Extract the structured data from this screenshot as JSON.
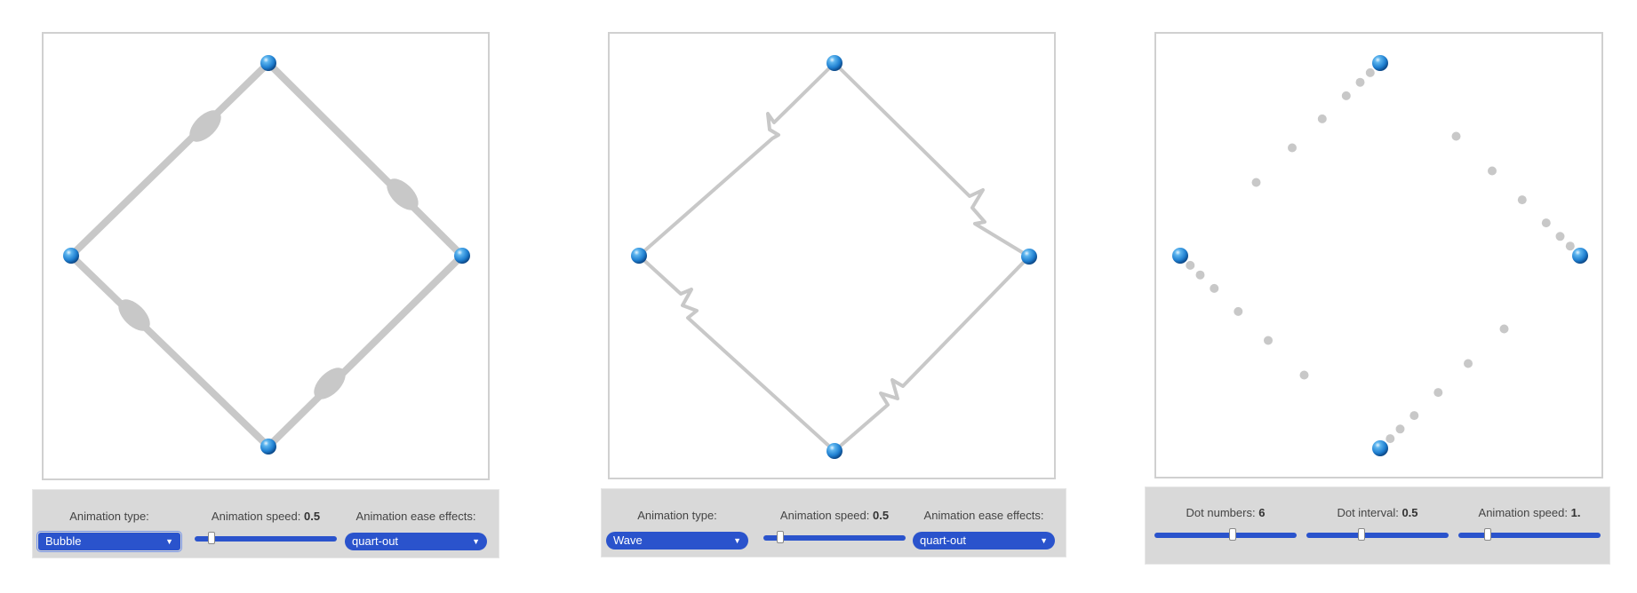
{
  "demo1": {
    "animation_type": {
      "label": "Animation type:",
      "value": "Bubble"
    },
    "animation_speed": {
      "label": "Animation speed:",
      "value": "0.5",
      "fraction": 0.1
    },
    "ease": {
      "label": "Animation ease effects:",
      "value": "quart-out"
    }
  },
  "demo2": {
    "animation_type": {
      "label": "Animation type:",
      "value": "Wave"
    },
    "animation_speed": {
      "label": "Animation speed:",
      "value": "0.5",
      "fraction": 0.1
    },
    "ease": {
      "label": "Animation ease effects:",
      "value": "quart-out"
    }
  },
  "demo3": {
    "dot_numbers": {
      "label": "Dot numbers:",
      "value": "6",
      "fraction": 0.55
    },
    "dot_interval": {
      "label": "Dot interval:",
      "value": "0.5",
      "fraction": 0.38
    },
    "animation_speed": {
      "label": "Animation speed:",
      "value": "1.",
      "fraction": 0.19
    }
  },
  "colors": {
    "accent": "#2a53cc",
    "path": "#c8c8c8",
    "node": "#1f7fd0",
    "panel": "#d9d9d9"
  },
  "icons": {
    "dropdown": "triangle-down-icon",
    "node": "blue-sphere-icon"
  }
}
